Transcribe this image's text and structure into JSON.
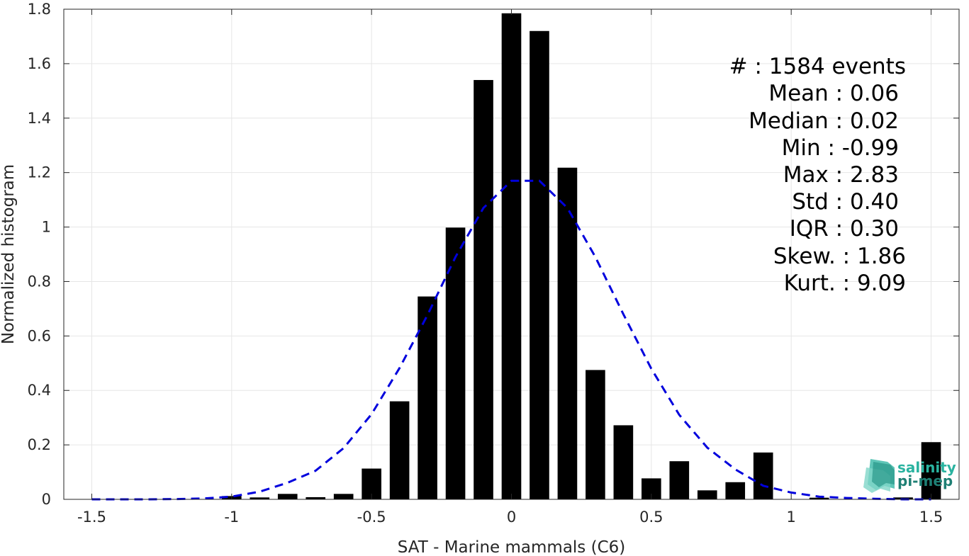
{
  "chart_data": {
    "type": "bar",
    "xlabel": "SAT - Marine mammals (C6)",
    "ylabel": "Normalized histogram",
    "xlim": [
      -1.6,
      1.6
    ],
    "ylim": [
      0,
      1.8
    ],
    "grid": true,
    "xticks": [
      -1.5,
      -1,
      -0.5,
      0,
      0.5,
      1,
      1.5
    ],
    "xtick_labels": [
      "-1.5",
      "-1",
      "-0.5",
      "0",
      "0.5",
      "1",
      "1.5"
    ],
    "yticks": [
      0,
      0.2,
      0.4,
      0.6,
      0.8,
      1,
      1.2,
      1.4,
      1.6,
      1.8
    ],
    "ytick_labels": [
      "0",
      "0.2",
      "0.4",
      "0.6",
      "0.8",
      "1",
      "1.2",
      "1.4",
      "1.6",
      "1.8"
    ],
    "bar_color": "#000000",
    "curve_color": "#0000dd",
    "bar_width": 0.07,
    "bars": {
      "x": [
        -1.5,
        -1.4,
        -1.3,
        -1.2,
        -1.1,
        -1.0,
        -0.9,
        -0.8,
        -0.7,
        -0.6,
        -0.5,
        -0.4,
        -0.3,
        -0.2,
        -0.1,
        0.0,
        0.1,
        0.2,
        0.3,
        0.4,
        0.5,
        0.6,
        0.7,
        0.8,
        0.9,
        1.0,
        1.1,
        1.2,
        1.3,
        1.4,
        1.5
      ],
      "values": [
        0,
        0,
        0,
        0,
        0,
        0.012,
        0.007,
        0.02,
        0.008,
        0.02,
        0.113,
        0.36,
        0.745,
        0.998,
        1.54,
        1.785,
        1.72,
        1.218,
        0.475,
        0.272,
        0.077,
        0.14,
        0.033,
        0.063,
        0.172,
        0,
        0.006,
        0,
        0,
        0.007,
        0.21
      ]
    },
    "fit_curve": {
      "style": "dashed",
      "x": [
        -1.5,
        -1.4,
        -1.3,
        -1.2,
        -1.1,
        -1.0,
        -0.9,
        -0.8,
        -0.7,
        -0.6,
        -0.5,
        -0.4,
        -0.3,
        -0.2,
        -0.1,
        0.0,
        0.1,
        0.2,
        0.3,
        0.4,
        0.5,
        0.6,
        0.7,
        0.8,
        0.9,
        1.0,
        1.1,
        1.2,
        1.3,
        1.4,
        1.5
      ],
      "values": [
        0.0,
        0.0,
        0.0,
        0.001,
        0.003,
        0.01,
        0.028,
        0.061,
        0.105,
        0.188,
        0.313,
        0.482,
        0.677,
        0.89,
        1.07,
        1.17,
        1.17,
        1.07,
        0.89,
        0.68,
        0.48,
        0.31,
        0.19,
        0.11,
        0.05,
        0.025,
        0.01,
        0.005,
        0.002,
        0.0,
        0.0
      ]
    }
  },
  "stats": [
    {
      "label": "#  : 1584 events"
    },
    {
      "label": "Mean : 0.06"
    },
    {
      "label": "Median : 0.02"
    },
    {
      "label": "Min : -0.99"
    },
    {
      "label": "Max : 2.83"
    },
    {
      "label": "Std : 0.40"
    },
    {
      "label": "IQR : 0.30"
    },
    {
      "label": "Skew. : 1.86"
    },
    {
      "label": "Kurt. : 9.09"
    }
  ],
  "logo": {
    "line1": "salinity",
    "line2": "pi-mep",
    "color1": "#2ab3a0",
    "color2": "#1e7f74"
  }
}
